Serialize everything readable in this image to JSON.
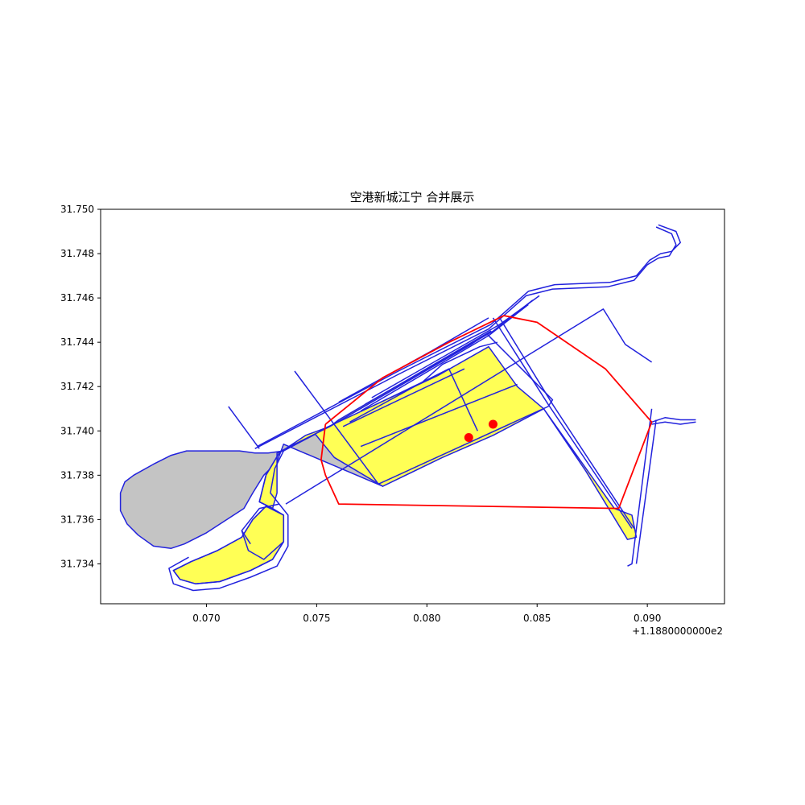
{
  "chart_data": {
    "type": "map",
    "title": "空港新城江宁 合并展示",
    "x_offset_label": "+1.1880000000e2",
    "xlim": [
      0.0652,
      0.0935
    ],
    "ylim": [
      31.7322,
      31.75
    ],
    "xticks": [
      {
        "value": 0.07,
        "label": "0.070"
      },
      {
        "value": 0.075,
        "label": "0.075"
      },
      {
        "value": 0.08,
        "label": "0.080"
      },
      {
        "value": 0.085,
        "label": "0.085"
      },
      {
        "value": 0.09,
        "label": "0.090"
      }
    ],
    "yticks": [
      {
        "value": 31.734,
        "label": "31.734"
      },
      {
        "value": 31.736,
        "label": "31.736"
      },
      {
        "value": 31.738,
        "label": "31.738"
      },
      {
        "value": 31.74,
        "label": "31.740"
      },
      {
        "value": 31.742,
        "label": "31.742"
      },
      {
        "value": 31.744,
        "label": "31.744"
      },
      {
        "value": 31.746,
        "label": "31.746"
      },
      {
        "value": 31.748,
        "label": "31.748"
      },
      {
        "value": 31.75,
        "label": "31.750"
      }
    ],
    "colors": {
      "gray_fill": "#c4c4c4",
      "yellow_fill": "#ffff55",
      "road": "#2222dd",
      "boundary": "#ff0000",
      "points": "#ff0000"
    },
    "gray_polygons": [
      [
        [
          0.0667,
          31.738
        ],
        [
          0.0676,
          31.7385
        ],
        [
          0.0684,
          31.7389
        ],
        [
          0.0691,
          31.7391
        ],
        [
          0.0715,
          31.7391
        ],
        [
          0.0722,
          31.739
        ],
        [
          0.0728,
          31.739
        ],
        [
          0.0735,
          31.7391
        ],
        [
          0.0756,
          31.7402
        ],
        [
          0.0798,
          31.7422
        ],
        [
          0.081,
          31.7428
        ],
        [
          0.078,
          31.7375
        ],
        [
          0.0735,
          31.7394
        ],
        [
          0.0732,
          31.7386
        ],
        [
          0.0726,
          31.738
        ],
        [
          0.0721,
          31.7372
        ],
        [
          0.0717,
          31.7365
        ],
        [
          0.07,
          31.7354
        ],
        [
          0.069,
          31.7349
        ],
        [
          0.0684,
          31.7347
        ],
        [
          0.0676,
          31.7348
        ],
        [
          0.0669,
          31.7353
        ],
        [
          0.0664,
          31.7358
        ],
        [
          0.0661,
          31.7364
        ],
        [
          0.0661,
          31.7372
        ],
        [
          0.0663,
          31.7377
        ]
      ]
    ],
    "yellow_polygons": [
      [
        [
          0.0749,
          31.7399
        ],
        [
          0.0805,
          31.7425
        ],
        [
          0.0828,
          31.7438
        ],
        [
          0.0841,
          31.742
        ],
        [
          0.0853,
          31.741
        ],
        [
          0.083,
          31.7398
        ],
        [
          0.0807,
          31.7388
        ],
        [
          0.078,
          31.7375
        ],
        [
          0.0758,
          31.7388
        ]
      ],
      [
        [
          0.0756,
          31.7402
        ],
        [
          0.082,
          31.7439
        ],
        [
          0.0829,
          31.7445
        ],
        [
          0.0817,
          31.7438
        ],
        [
          0.076,
          31.7405
        ]
      ],
      [
        [
          0.0732,
          31.739
        ],
        [
          0.0756,
          31.7402
        ],
        [
          0.0745,
          31.7398
        ],
        [
          0.0733,
          31.739
        ],
        [
          0.0727,
          31.738
        ],
        [
          0.0724,
          31.7368
        ],
        [
          0.073,
          31.7365
        ],
        [
          0.0732,
          31.7372
        ]
      ],
      [
        [
          0.0727,
          31.7366
        ],
        [
          0.0735,
          31.7362
        ],
        [
          0.0735,
          31.735
        ],
        [
          0.073,
          31.7342
        ],
        [
          0.072,
          31.7337
        ],
        [
          0.0706,
          31.7332
        ],
        [
          0.0695,
          31.7331
        ],
        [
          0.0688,
          31.7333
        ],
        [
          0.0685,
          31.7337
        ],
        [
          0.0693,
          31.7341
        ],
        [
          0.0705,
          31.7346
        ],
        [
          0.0716,
          31.7352
        ],
        [
          0.0721,
          31.736
        ]
      ],
      [
        [
          0.0853,
          31.741
        ],
        [
          0.0885,
          31.7365
        ],
        [
          0.0893,
          31.7362
        ],
        [
          0.0895,
          31.7352
        ],
        [
          0.0891,
          31.7351
        ],
        [
          0.0872,
          31.7382
        ]
      ]
    ],
    "road_lines": [
      [
        [
          0.0722,
          31.7392
        ],
        [
          0.0786,
          31.7425
        ],
        [
          0.0828,
          31.7446
        ],
        [
          0.0845,
          31.7461
        ],
        [
          0.0857,
          31.7464
        ],
        [
          0.0882,
          31.7465
        ],
        [
          0.0894,
          31.7468
        ],
        [
          0.09,
          31.7475
        ],
        [
          0.0905,
          31.7478
        ],
        [
          0.091,
          31.7479
        ],
        [
          0.0913,
          31.7484
        ],
        [
          0.0911,
          31.7489
        ],
        [
          0.0904,
          31.7492
        ]
      ],
      [
        [
          0.0723,
          31.7393
        ],
        [
          0.0787,
          31.7427
        ],
        [
          0.0829,
          31.7448
        ],
        [
          0.0846,
          31.7463
        ],
        [
          0.0858,
          31.7466
        ],
        [
          0.0883,
          31.7467
        ],
        [
          0.0895,
          31.747
        ],
        [
          0.0901,
          31.7477
        ],
        [
          0.0906,
          31.748
        ],
        [
          0.0911,
          31.7481
        ],
        [
          0.0915,
          31.7485
        ],
        [
          0.0913,
          31.749
        ],
        [
          0.0905,
          31.7493
        ]
      ],
      [
        [
          0.071,
          31.7411
        ],
        [
          0.0724,
          31.7392
        ]
      ],
      [
        [
          0.074,
          31.7427
        ],
        [
          0.0778,
          31.7376
        ],
        [
          0.0855,
          31.7411
        ],
        [
          0.0857,
          31.7414
        ],
        [
          0.0827,
          31.7444
        ]
      ],
      [
        [
          0.0736,
          31.7367
        ],
        [
          0.088,
          31.7455
        ],
        [
          0.089,
          31.7439
        ],
        [
          0.0902,
          31.7431
        ]
      ],
      [
        [
          0.0828,
          31.7451
        ],
        [
          0.0802,
          31.7436
        ],
        [
          0.076,
          31.7413
        ]
      ],
      [
        [
          0.083,
          31.7451
        ],
        [
          0.0855,
          31.7412
        ],
        [
          0.0893,
          31.7356
        ]
      ],
      [
        [
          0.0833,
          31.7451
        ],
        [
          0.0857,
          31.7412
        ],
        [
          0.0894,
          31.7356
        ]
      ],
      [
        [
          0.0902,
          31.741
        ],
        [
          0.0893,
          31.734
        ],
        [
          0.0891,
          31.7339
        ]
      ],
      [
        [
          0.0904,
          31.7405
        ],
        [
          0.0895,
          31.734
        ]
      ],
      [
        [
          0.0902,
          31.7404
        ],
        [
          0.0908,
          31.7406
        ],
        [
          0.0915,
          31.7405
        ],
        [
          0.0922,
          31.7405
        ]
      ],
      [
        [
          0.0902,
          31.7403
        ],
        [
          0.0908,
          31.7404
        ],
        [
          0.0915,
          31.7403
        ],
        [
          0.0922,
          31.7404
        ]
      ],
      [
        [
          0.0762,
          31.7402
        ],
        [
          0.0817,
          31.7428
        ]
      ],
      [
        [
          0.077,
          31.7393
        ],
        [
          0.0841,
          31.7421
        ]
      ],
      [
        [
          0.081,
          31.7428
        ],
        [
          0.0823,
          31.74
        ]
      ],
      [
        [
          0.0765,
          31.7404
        ],
        [
          0.0798,
          31.7422
        ],
        [
          0.0807,
          31.743
        ],
        [
          0.0824,
          31.7438
        ],
        [
          0.0832,
          31.744
        ]
      ],
      [
        [
          0.077,
          31.7409
        ],
        [
          0.0828,
          31.7443
        ],
        [
          0.0846,
          31.7457
        ]
      ],
      [
        [
          0.0772,
          31.7412
        ],
        [
          0.083,
          31.7445
        ],
        [
          0.0848,
          31.7459
        ]
      ],
      [
        [
          0.0775,
          31.7415
        ],
        [
          0.0833,
          31.7448
        ],
        [
          0.0851,
          31.7461
        ]
      ],
      [
        [
          0.0733,
          31.739
        ],
        [
          0.0727,
          31.738
        ],
        [
          0.0724,
          31.7368
        ],
        [
          0.073,
          31.7365
        ],
        [
          0.0735,
          31.7362
        ],
        [
          0.0735,
          31.735
        ],
        [
          0.073,
          31.7342
        ],
        [
          0.072,
          31.7337
        ],
        [
          0.0706,
          31.7332
        ],
        [
          0.0695,
          31.7331
        ],
        [
          0.0688,
          31.7333
        ],
        [
          0.0685,
          31.7337
        ],
        [
          0.0693,
          31.7341
        ],
        [
          0.0705,
          31.7346
        ],
        [
          0.0716,
          31.7352
        ],
        [
          0.0721,
          31.736
        ],
        [
          0.0727,
          31.7366
        ]
      ],
      [
        [
          0.0735,
          31.7391
        ],
        [
          0.0731,
          31.7383
        ],
        [
          0.0729,
          31.7372
        ],
        [
          0.0733,
          31.7367
        ],
        [
          0.0737,
          31.7362
        ],
        [
          0.0737,
          31.7348
        ],
        [
          0.0732,
          31.7339
        ],
        [
          0.072,
          31.7334
        ],
        [
          0.0706,
          31.7329
        ],
        [
          0.0694,
          31.7328
        ],
        [
          0.0685,
          31.7331
        ],
        [
          0.0683,
          31.7338
        ],
        [
          0.0692,
          31.7343
        ]
      ],
      [
        [
          0.072,
          31.7349
        ],
        [
          0.0716,
          31.7355
        ],
        [
          0.0724,
          31.7365
        ],
        [
          0.0733,
          31.7367
        ]
      ],
      [
        [
          0.0716,
          31.7355
        ],
        [
          0.0719,
          31.7346
        ],
        [
          0.0726,
          31.7342
        ],
        [
          0.0735,
          31.735
        ]
      ]
    ],
    "boundary_lines": [
      [
        [
          0.0754,
          31.7403
        ],
        [
          0.078,
          31.7424
        ],
        [
          0.081,
          31.744
        ],
        [
          0.0835,
          31.7452
        ],
        [
          0.085,
          31.7449
        ],
        [
          0.0881,
          31.7428
        ],
        [
          0.0902,
          31.7404
        ],
        [
          0.0887,
          31.7365
        ],
        [
          0.076,
          31.7367
        ],
        [
          0.0754,
          31.738
        ],
        [
          0.0752,
          31.7387
        ],
        [
          0.0754,
          31.7403
        ]
      ]
    ],
    "points": [
      [
        0.0819,
        31.7397
      ],
      [
        0.083,
        31.7403
      ]
    ]
  }
}
